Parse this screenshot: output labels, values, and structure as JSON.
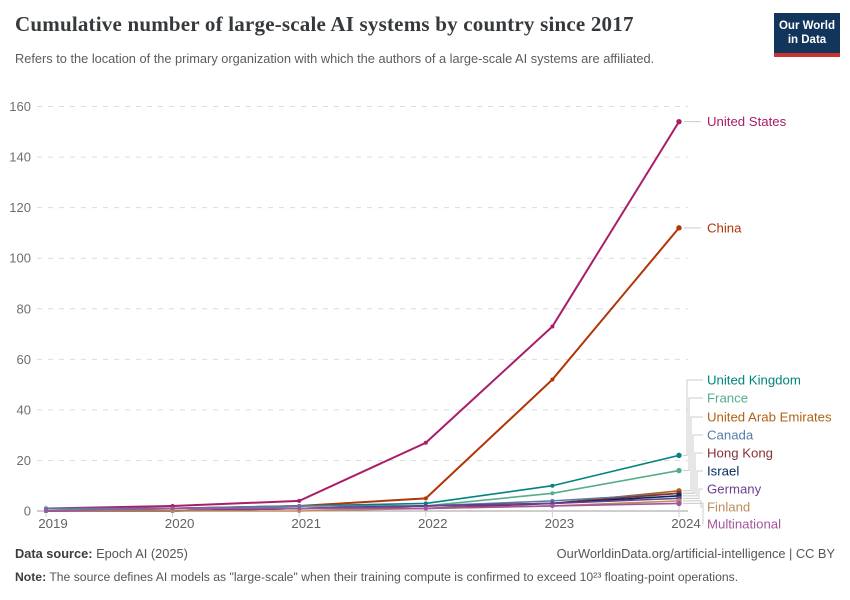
{
  "header": {
    "title": "Cumulative number of large-scale AI systems by country since 2017",
    "subtitle": "Refers to the location of the primary organization with which the authors of a large-scale AI systems are affiliated."
  },
  "logo": {
    "line1": "Our World",
    "line2": "in Data"
  },
  "footer": {
    "datasource_label": "Data source:",
    "datasource_value": " Epoch AI (2025)",
    "attribution": "OurWorldinData.org/artificial-intelligence | CC BY",
    "note_label": "Note:",
    "note_text": " The source defines AI models as \"large-scale\" when their training compute is confirmed to exceed 10²³ floating-point operations."
  },
  "chart_data": {
    "type": "line",
    "title": "Cumulative number of large-scale AI systems by country since 2017",
    "x": [
      2019,
      2020,
      2021,
      2022,
      2023,
      2024
    ],
    "x_tick_labels": [
      "2019",
      "2020",
      "2021",
      "2022",
      "2023",
      "2024"
    ],
    "y_ticks": [
      0,
      20,
      40,
      60,
      80,
      100,
      120,
      140,
      160
    ],
    "ylim": [
      0,
      160
    ],
    "xlabel": "",
    "ylabel": "",
    "grid": "horizontal-dashed",
    "legend_position": "right-end-labels",
    "series": [
      {
        "name": "United States",
        "color": "#aa1d67",
        "values": [
          1,
          2,
          4,
          27,
          73,
          154
        ]
      },
      {
        "name": "China",
        "color": "#b13507",
        "values": [
          0,
          1,
          2,
          5,
          52,
          112
        ]
      },
      {
        "name": "United Kingdom",
        "color": "#00847e",
        "values": [
          1,
          1,
          2,
          3,
          10,
          22
        ]
      },
      {
        "name": "France",
        "color": "#58ac8c",
        "values": [
          0,
          1,
          1,
          2,
          7,
          16
        ]
      },
      {
        "name": "United Arab Emirates",
        "color": "#b16214",
        "values": [
          0,
          0,
          1,
          2,
          3,
          8
        ]
      },
      {
        "name": "Canada",
        "color": "#577ca6",
        "values": [
          1,
          1,
          2,
          2,
          4,
          7
        ]
      },
      {
        "name": "Hong Kong",
        "color": "#883039",
        "values": [
          0,
          0,
          1,
          1,
          3,
          7
        ]
      },
      {
        "name": "Israel",
        "color": "#00295b",
        "values": [
          0,
          0,
          1,
          2,
          3,
          6
        ]
      },
      {
        "name": "Germany",
        "color": "#6d3e91",
        "values": [
          0,
          0,
          1,
          2,
          3,
          5
        ]
      },
      {
        "name": "Finland",
        "color": "#bc8e5a",
        "values": [
          0,
          0,
          0,
          1,
          2,
          4
        ]
      },
      {
        "name": "Multinational",
        "color": "#a2559c",
        "values": [
          0,
          1,
          1,
          1,
          2,
          3
        ]
      }
    ]
  }
}
